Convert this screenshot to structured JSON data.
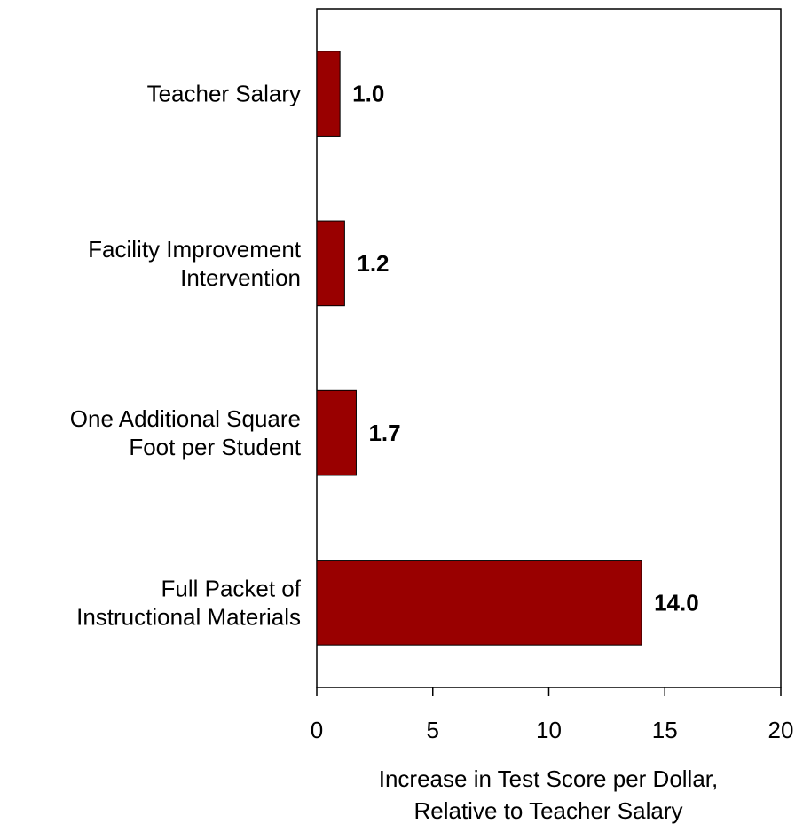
{
  "chart_data": {
    "type": "barh",
    "categories": [
      [
        "Teacher Salary"
      ],
      [
        "Facility Improvement",
        "Intervention"
      ],
      [
        "One Additional Square",
        "Foot per Student"
      ],
      [
        "Full Packet of",
        "Instructional Materials"
      ]
    ],
    "values": [
      1.0,
      1.2,
      1.7,
      14.0
    ],
    "value_labels": [
      "1.0",
      "1.2",
      "1.7",
      "14.0"
    ],
    "color": "#990000",
    "xlim": [
      0,
      20
    ],
    "xticks": [
      0,
      5,
      10,
      15,
      20
    ],
    "xlabel": [
      "Increase in Test Score per Dollar,",
      "Relative to Teacher Salary"
    ],
    "grid": false
  }
}
